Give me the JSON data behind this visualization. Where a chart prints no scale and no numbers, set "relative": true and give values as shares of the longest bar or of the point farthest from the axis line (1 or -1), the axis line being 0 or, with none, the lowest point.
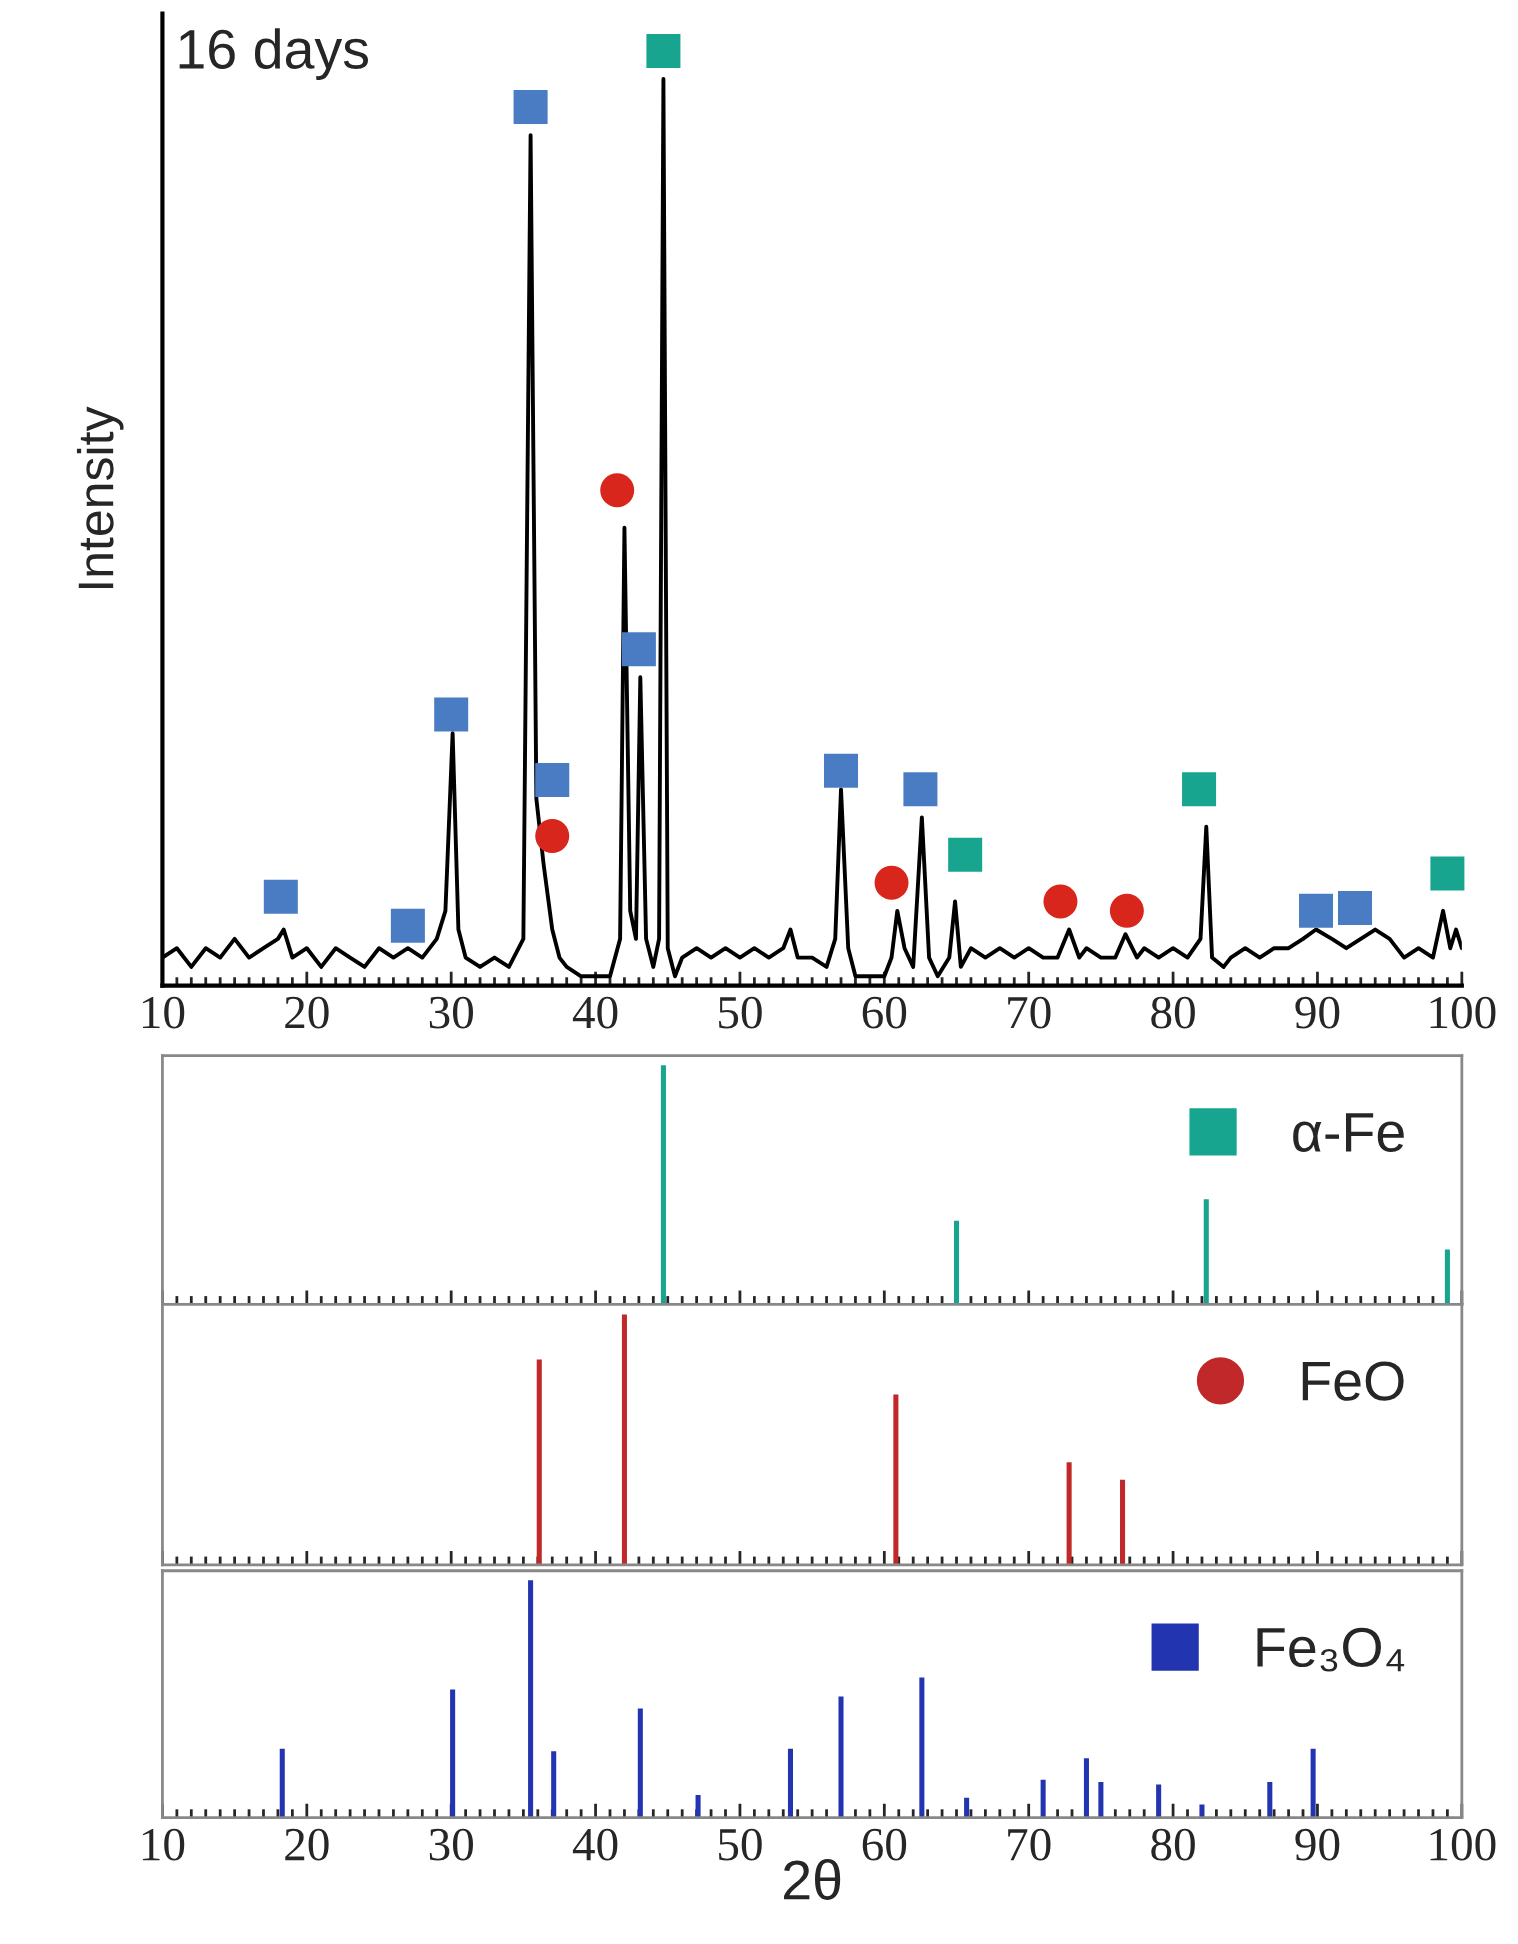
{
  "chart_data": [
    {
      "type": "line",
      "ylabel": "Intensity",
      "annotations": [
        "16 days"
      ],
      "relative": true,
      "xlim": [
        10,
        100
      ],
      "xticks": [
        10,
        20,
        30,
        40,
        50,
        60,
        70,
        80,
        90,
        100
      ],
      "tick_labels": "x",
      "series": [
        {
          "type": "line",
          "color": "#000000",
          "x": [
            10,
            11,
            12,
            13,
            14,
            15,
            16,
            17,
            18,
            18.4,
            19,
            20,
            21,
            22,
            23,
            24,
            25,
            26,
            27,
            28,
            29,
            29.6,
            30.1,
            30.5,
            31,
            32,
            33,
            34,
            35,
            35.5,
            35.9,
            36.4,
            37,
            37.5,
            38,
            39,
            40,
            41,
            41.7,
            42.0,
            42.4,
            42.8,
            43.1,
            43.5,
            44.0,
            44.4,
            44.7,
            45.0,
            45.5,
            46,
            47,
            48,
            49,
            50,
            51,
            52,
            53,
            53.5,
            54,
            55,
            56,
            56.6,
            57.0,
            57.5,
            58,
            59,
            60,
            60.5,
            60.9,
            61.4,
            62,
            62.6,
            63.1,
            63.7,
            64.5,
            64.9,
            65.3,
            66,
            67,
            68,
            69,
            70,
            71,
            72,
            72.8,
            73.5,
            74,
            75,
            76,
            76.7,
            77.5,
            78,
            79,
            80,
            81,
            81.9,
            82.3,
            82.7,
            83.5,
            84,
            85,
            86,
            87,
            88,
            89,
            89.9,
            91,
            92,
            93,
            94,
            95,
            96,
            97,
            98,
            98.7,
            99.2,
            99.6,
            100
          ],
          "values": [
            0.03,
            0.04,
            0.02,
            0.04,
            0.03,
            0.05,
            0.03,
            0.04,
            0.05,
            0.06,
            0.03,
            0.04,
            0.02,
            0.04,
            0.03,
            0.02,
            0.04,
            0.03,
            0.04,
            0.03,
            0.05,
            0.08,
            0.27,
            0.06,
            0.03,
            0.02,
            0.03,
            0.02,
            0.05,
            0.91,
            0.2,
            0.13,
            0.06,
            0.03,
            0.02,
            0.01,
            0.01,
            0.01,
            0.05,
            0.49,
            0.08,
            0.05,
            0.33,
            0.05,
            0.02,
            0.05,
            0.97,
            0.04,
            0.01,
            0.03,
            0.04,
            0.03,
            0.04,
            0.03,
            0.04,
            0.03,
            0.04,
            0.06,
            0.03,
            0.03,
            0.02,
            0.05,
            0.21,
            0.04,
            0.01,
            0.01,
            0.01,
            0.03,
            0.08,
            0.04,
            0.02,
            0.18,
            0.03,
            0.01,
            0.03,
            0.09,
            0.02,
            0.04,
            0.03,
            0.04,
            0.03,
            0.04,
            0.03,
            0.03,
            0.06,
            0.03,
            0.04,
            0.03,
            0.03,
            0.055,
            0.03,
            0.04,
            0.03,
            0.04,
            0.03,
            0.05,
            0.17,
            0.03,
            0.02,
            0.03,
            0.04,
            0.03,
            0.04,
            0.04,
            0.05,
            0.06,
            0.05,
            0.04,
            0.05,
            0.06,
            0.05,
            0.03,
            0.04,
            0.03,
            0.08,
            0.04,
            0.06,
            0.04
          ]
        },
        {
          "type": "scatter",
          "marker": "square",
          "color": "#4a7cc4",
          "x": [
            18.2,
            27,
            30.0,
            35.5,
            37.0,
            43.0,
            57,
            62.5,
            89.9,
            92.6
          ],
          "values": [
            0.095,
            0.064,
            0.29,
            0.94,
            0.22,
            0.36,
            0.23,
            0.21,
            0.08,
            0.083
          ]
        },
        {
          "type": "scatter",
          "marker": "circle",
          "color": "#d9261c",
          "x": [
            37.0,
            41.5,
            60.5,
            72.2,
            76.8
          ],
          "values": [
            0.16,
            0.53,
            0.11,
            0.09,
            0.08
          ]
        },
        {
          "type": "scatter",
          "marker": "square",
          "color": "#17a58f",
          "x": [
            44.7,
            65.6,
            81.8,
            99.0
          ],
          "values": [
            1.0,
            0.14,
            0.21,
            0.12
          ]
        }
      ]
    },
    {
      "type": "bar",
      "relative": true,
      "xlim": [
        10,
        100
      ],
      "xticks": [
        10,
        20,
        30,
        40,
        50,
        60,
        70,
        80,
        90,
        100
      ],
      "tick_labels": false,
      "legend": "top right",
      "series": [
        {
          "name": "α-Fe",
          "marker": "square",
          "color": "#17a58f",
          "x": [
            44.7,
            65.0,
            82.3,
            99.0
          ],
          "values": [
            1.0,
            0.35,
            0.44,
            0.23
          ]
        }
      ]
    },
    {
      "type": "bar",
      "relative": true,
      "xlim": [
        10,
        100
      ],
      "xticks": [
        10,
        20,
        30,
        40,
        50,
        60,
        70,
        80,
        90,
        100
      ],
      "tick_labels": false,
      "legend": "top right",
      "series": [
        {
          "name": "FeO",
          "marker": "circle",
          "color": "#c0282a",
          "x": [
            36.1,
            42.0,
            60.8,
            72.8,
            76.5
          ],
          "values": [
            0.82,
            1.0,
            0.68,
            0.41,
            0.34
          ]
        }
      ]
    },
    {
      "type": "bar",
      "relative": true,
      "xlabel": "2θ",
      "xlim": [
        10,
        100
      ],
      "xticks": [
        10,
        20,
        30,
        40,
        50,
        60,
        70,
        80,
        90,
        100
      ],
      "tick_labels": "x",
      "legend": "top right",
      "series": [
        {
          "name": "Fe₃O₄",
          "marker": "square",
          "color": "#2334b0",
          "x": [
            18.3,
            30.1,
            35.5,
            37.1,
            43.1,
            47.1,
            53.5,
            57.0,
            62.6,
            65.7,
            71.0,
            74.0,
            75.0,
            79.0,
            82.0,
            86.7,
            89.7
          ],
          "values": [
            0.29,
            0.54,
            1.0,
            0.28,
            0.46,
            0.095,
            0.29,
            0.51,
            0.59,
            0.084,
            0.16,
            0.25,
            0.15,
            0.14,
            0.055,
            0.15,
            0.29
          ]
        }
      ]
    }
  ]
}
